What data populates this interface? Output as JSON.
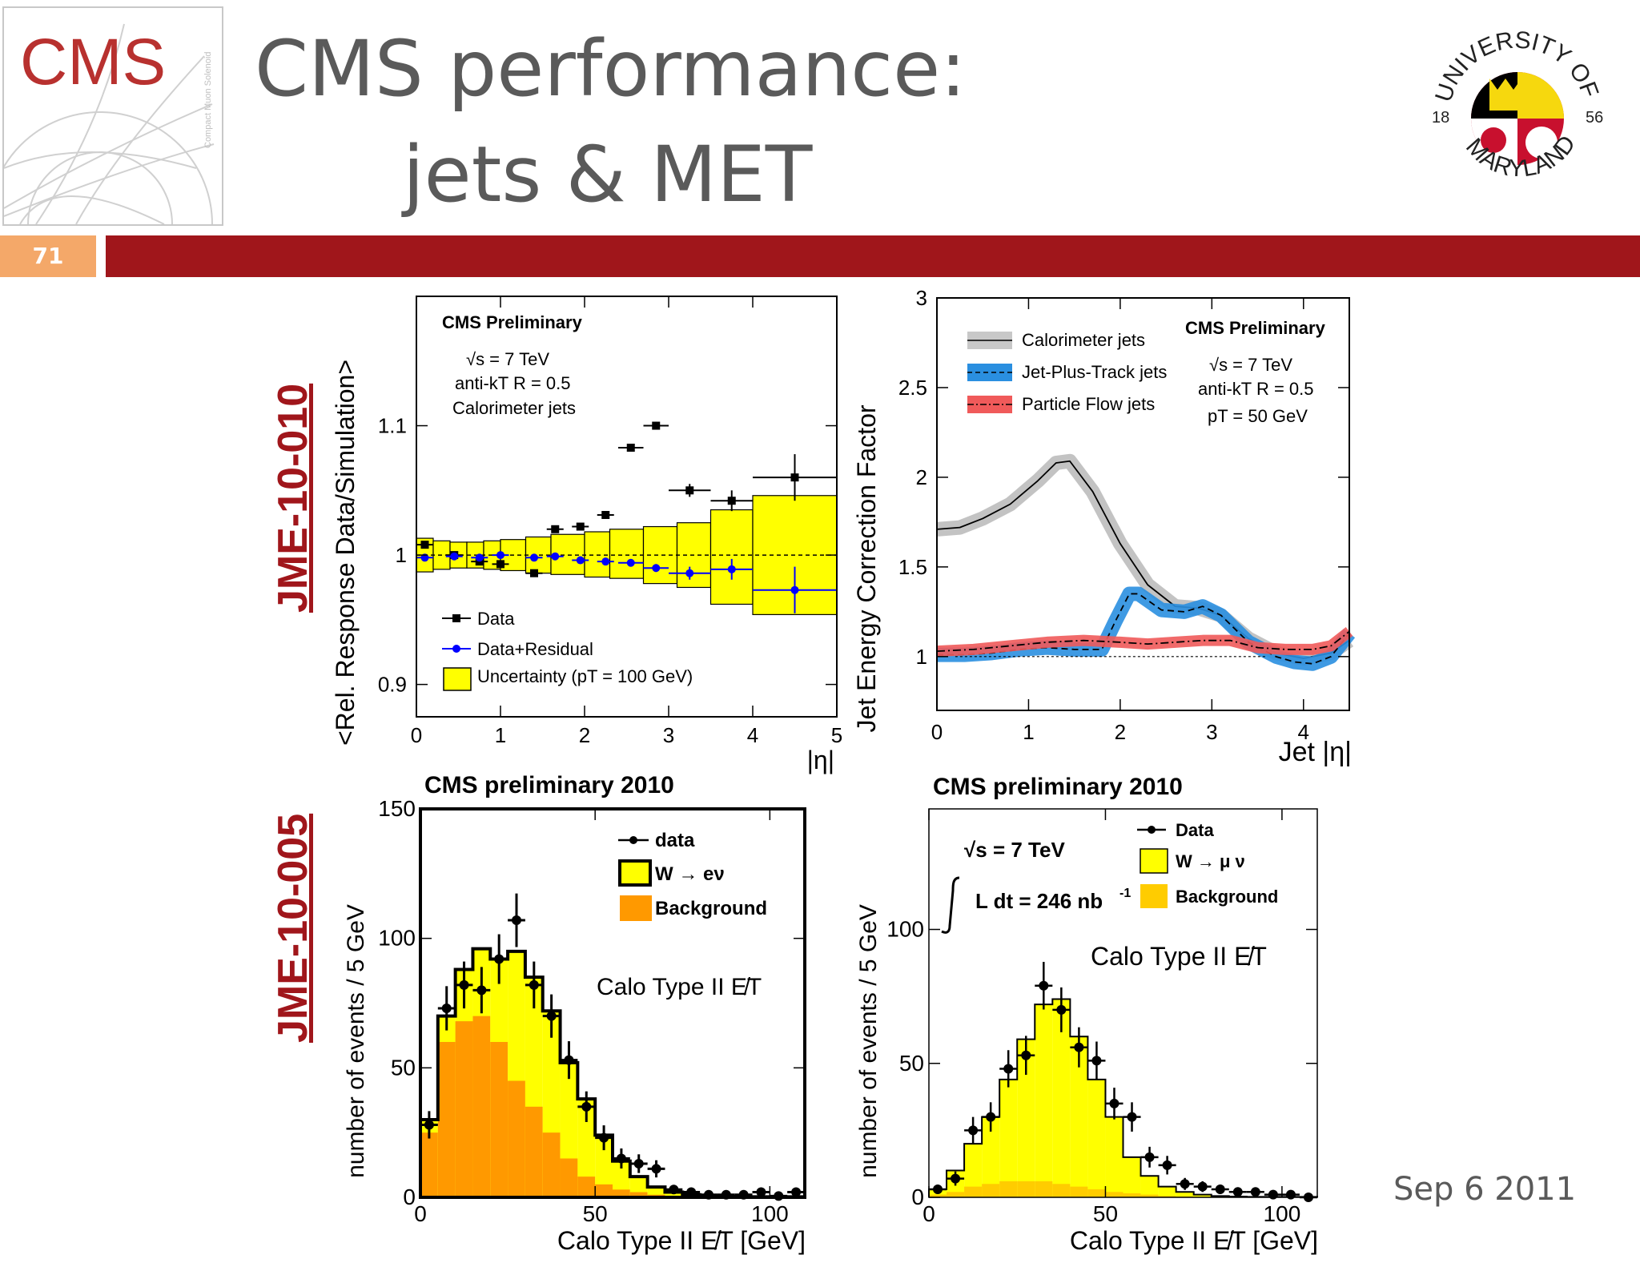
{
  "slide": {
    "title_line1": "CMS performance:",
    "title_line2": "jets & MET",
    "page_number": "71",
    "date": "Sep 6 2011",
    "ref_top": "JME-10-010",
    "ref_bottom": "JME-10-005",
    "cms_logo_text": "CMS",
    "cms_logo_side_text": "Compact Muon Solenoid",
    "umd_seal": {
      "top": "UNIVERSITY OF",
      "bottom": "MARYLAND",
      "year_left": "18",
      "year_right": "56"
    },
    "colors": {
      "accent_red": "#a0161b",
      "badge_orange": "#f4a869",
      "title_gray": "#5a5a5a"
    }
  },
  "chart_data": [
    {
      "id": "rel-response",
      "type": "scatter",
      "ylabel": "<Rel. Response Data/Simulation>",
      "xlabel": "|η|",
      "xlim": [
        0,
        5
      ],
      "ylim": [
        0.875,
        1.2
      ],
      "xticks": [
        "0",
        "1",
        "2",
        "3",
        "4",
        "5"
      ],
      "yticks": [
        {
          "v": 0.9,
          "t": "0.9"
        },
        {
          "v": 1.0,
          "t": "1"
        },
        {
          "v": 1.1,
          "t": "1.1"
        }
      ],
      "annotations": [
        "CMS Preliminary",
        "√s = 7 TeV",
        "anti-kT R = 0.5",
        "Calorimeter jets"
      ],
      "legend": [
        "Data",
        "Data+Residual",
        "Uncertainty (pT = 100 GeV)"
      ],
      "reference_line": 1.0,
      "uncertainty_band": [
        {
          "x0": 0.0,
          "x1": 0.2,
          "lo": 0.987,
          "hi": 1.013
        },
        {
          "x0": 0.2,
          "x1": 0.4,
          "lo": 0.989,
          "hi": 1.011
        },
        {
          "x0": 0.4,
          "x1": 0.6,
          "lo": 0.99,
          "hi": 1.01
        },
        {
          "x0": 0.6,
          "x1": 0.8,
          "lo": 0.99,
          "hi": 1.01
        },
        {
          "x0": 0.8,
          "x1": 1.0,
          "lo": 0.989,
          "hi": 1.011
        },
        {
          "x0": 1.0,
          "x1": 1.3,
          "lo": 0.988,
          "hi": 1.012
        },
        {
          "x0": 1.3,
          "x1": 1.6,
          "lo": 0.986,
          "hi": 1.014
        },
        {
          "x0": 1.6,
          "x1": 2.0,
          "lo": 0.985,
          "hi": 1.016
        },
        {
          "x0": 2.0,
          "x1": 2.3,
          "lo": 0.983,
          "hi": 1.018
        },
        {
          "x0": 2.3,
          "x1": 2.7,
          "lo": 0.982,
          "hi": 1.02
        },
        {
          "x0": 2.7,
          "x1": 3.1,
          "lo": 0.978,
          "hi": 1.022
        },
        {
          "x0": 3.1,
          "x1": 3.5,
          "lo": 0.975,
          "hi": 1.025
        },
        {
          "x0": 3.5,
          "x1": 4.0,
          "lo": 0.962,
          "hi": 1.035
        },
        {
          "x0": 4.0,
          "x1": 5.0,
          "lo": 0.954,
          "hi": 1.046
        }
      ],
      "series": [
        {
          "name": "Data",
          "points": [
            {
              "x": 0.1,
              "y": 1.008,
              "xe": 0.1,
              "ye": 0.002
            },
            {
              "x": 0.45,
              "y": 1.0,
              "xe": 0.1,
              "ye": 0.002
            },
            {
              "x": 0.75,
              "y": 0.995,
              "xe": 0.1,
              "ye": 0.002
            },
            {
              "x": 1.0,
              "y": 0.993,
              "xe": 0.1,
              "ye": 0.002
            },
            {
              "x": 1.4,
              "y": 0.986,
              "xe": 0.1,
              "ye": 0.002
            },
            {
              "x": 1.65,
              "y": 1.02,
              "xe": 0.1,
              "ye": 0.002
            },
            {
              "x": 1.95,
              "y": 1.022,
              "xe": 0.1,
              "ye": 0.002
            },
            {
              "x": 2.25,
              "y": 1.031,
              "xe": 0.1,
              "ye": 0.002
            },
            {
              "x": 2.55,
              "y": 1.083,
              "xe": 0.15,
              "ye": 0.002
            },
            {
              "x": 2.85,
              "y": 1.1,
              "xe": 0.15,
              "ye": 0.003
            },
            {
              "x": 3.25,
              "y": 1.05,
              "xe": 0.25,
              "ye": 0.005
            },
            {
              "x": 3.75,
              "y": 1.042,
              "xe": 0.25,
              "ye": 0.008
            },
            {
              "x": 4.5,
              "y": 1.06,
              "xe": 0.5,
              "ye": 0.018
            }
          ]
        },
        {
          "name": "Data+Residual",
          "points": [
            {
              "x": 0.1,
              "y": 0.998,
              "xe": 0.1,
              "ye": 0.002
            },
            {
              "x": 0.45,
              "y": 0.999,
              "xe": 0.1,
              "ye": 0.002
            },
            {
              "x": 0.75,
              "y": 0.998,
              "xe": 0.1,
              "ye": 0.002
            },
            {
              "x": 1.0,
              "y": 1.0,
              "xe": 0.1,
              "ye": 0.002
            },
            {
              "x": 1.4,
              "y": 0.998,
              "xe": 0.1,
              "ye": 0.002
            },
            {
              "x": 1.65,
              "y": 0.999,
              "xe": 0.1,
              "ye": 0.002
            },
            {
              "x": 1.95,
              "y": 0.996,
              "xe": 0.1,
              "ye": 0.002
            },
            {
              "x": 2.25,
              "y": 0.995,
              "xe": 0.1,
              "ye": 0.002
            },
            {
              "x": 2.55,
              "y": 0.994,
              "xe": 0.15,
              "ye": 0.002
            },
            {
              "x": 2.85,
              "y": 0.99,
              "xe": 0.15,
              "ye": 0.003
            },
            {
              "x": 3.25,
              "y": 0.986,
              "xe": 0.25,
              "ye": 0.005
            },
            {
              "x": 3.75,
              "y": 0.989,
              "xe": 0.25,
              "ye": 0.008
            },
            {
              "x": 4.5,
              "y": 0.973,
              "xe": 0.5,
              "ye": 0.018
            }
          ]
        }
      ]
    },
    {
      "id": "jec-factor",
      "type": "line",
      "ylabel": "Jet Energy Correction Factor",
      "xlabel": "Jet |η|",
      "xlim": [
        0,
        4.5
      ],
      "ylim": [
        0.7,
        3
      ],
      "xticks": [
        "0",
        "1",
        "2",
        "3",
        "4"
      ],
      "yticks": [
        {
          "v": 1,
          "t": "1"
        },
        {
          "v": 1.5,
          "t": "1.5"
        },
        {
          "v": 2,
          "t": "2"
        },
        {
          "v": 2.5,
          "t": "2.5"
        },
        {
          "v": 3,
          "t": "3"
        }
      ],
      "annotations": [
        "CMS Preliminary",
        "√s = 7 TeV",
        "anti-kT R = 0.5",
        "pT = 50 GeV"
      ],
      "legend": [
        "Calorimeter jets",
        "Jet-Plus-Track jets",
        "Particle Flow jets"
      ],
      "reference_line": 1.0,
      "series": [
        {
          "name": "Calorimeter jets",
          "color": "#bdbdbd",
          "x": [
            0,
            0.25,
            0.5,
            0.8,
            1.1,
            1.3,
            1.45,
            1.7,
            2.0,
            2.3,
            2.6,
            2.85,
            3.1,
            3.4,
            3.7,
            4.0,
            4.3,
            4.5
          ],
          "y": [
            1.71,
            1.72,
            1.77,
            1.85,
            1.98,
            2.08,
            2.09,
            1.92,
            1.63,
            1.4,
            1.28,
            1.27,
            1.23,
            1.1,
            1.02,
            0.99,
            1.02,
            1.09
          ]
        },
        {
          "name": "Jet-Plus-Track jets",
          "color": "#2a8fe0",
          "x": [
            0,
            0.3,
            0.6,
            0.9,
            1.2,
            1.5,
            1.8,
            1.95,
            2.1,
            2.2,
            2.45,
            2.7,
            2.9,
            3.1,
            3.4,
            3.7,
            3.9,
            4.1,
            4.3,
            4.5
          ],
          "y": [
            1.01,
            1.01,
            1.02,
            1.04,
            1.05,
            1.04,
            1.04,
            1.2,
            1.35,
            1.35,
            1.26,
            1.25,
            1.28,
            1.23,
            1.08,
            1.0,
            0.97,
            0.96,
            1.0,
            1.13
          ]
        },
        {
          "name": "Particle Flow jets",
          "color": "#f05a5a",
          "x": [
            0,
            0.4,
            0.8,
            1.2,
            1.6,
            2.0,
            2.3,
            2.6,
            2.9,
            3.2,
            3.5,
            3.8,
            4.1,
            4.3,
            4.5
          ],
          "y": [
            1.03,
            1.04,
            1.06,
            1.08,
            1.09,
            1.08,
            1.07,
            1.08,
            1.09,
            1.09,
            1.05,
            1.04,
            1.04,
            1.06,
            1.14
          ]
        }
      ]
    },
    {
      "id": "met-wenu",
      "type": "bar",
      "title": "CMS preliminary 2010",
      "ylabel": "number of events / 5 GeV",
      "xlabel": "Calo Type II E̸T [GeV]",
      "annotation": "Calo Type II E̸T",
      "xlim": [
        0,
        110
      ],
      "ylim": [
        0,
        150
      ],
      "xticks": [
        {
          "v": 0,
          "t": "0"
        },
        {
          "v": 50,
          "t": "50"
        },
        {
          "v": 100,
          "t": "100"
        }
      ],
      "yticks": [
        {
          "v": 0,
          "t": "0"
        },
        {
          "v": 50,
          "t": "50"
        },
        {
          "v": 100,
          "t": "100"
        },
        {
          "v": 150,
          "t": "150"
        }
      ],
      "legend": [
        "data",
        "W → eν",
        "Background"
      ],
      "bin_width": 5,
      "bin_starts": [
        0,
        5,
        10,
        15,
        20,
        25,
        30,
        35,
        40,
        45,
        50,
        55,
        60,
        65,
        70,
        75,
        80,
        85,
        90,
        95,
        100,
        105
      ],
      "series": [
        {
          "name": "Background",
          "color": "#ff9900",
          "values": [
            25,
            60,
            68,
            70,
            60,
            45,
            35,
            25,
            15,
            8,
            5,
            3,
            2,
            1,
            0.5,
            0.3,
            0.2,
            0.1,
            0.1,
            0.1,
            0.1,
            0.1
          ]
        },
        {
          "name": "W → eν",
          "color": "#ffff00",
          "values": [
            30,
            70,
            88,
            96,
            92,
            95,
            85,
            72,
            52,
            38,
            24,
            14,
            8,
            4,
            2,
            1,
            0.5,
            0.3,
            0.2,
            0.2,
            0.2,
            0.2
          ]
        },
        {
          "name": "data",
          "points": [
            {
              "x": 2.5,
              "y": 28
            },
            {
              "x": 7.5,
              "y": 73
            },
            {
              "x": 12.5,
              "y": 82
            },
            {
              "x": 17.5,
              "y": 80
            },
            {
              "x": 22.5,
              "y": 92
            },
            {
              "x": 27.5,
              "y": 107
            },
            {
              "x": 32.5,
              "y": 82
            },
            {
              "x": 37.5,
              "y": 70
            },
            {
              "x": 42.5,
              "y": 53
            },
            {
              "x": 47.5,
              "y": 35
            },
            {
              "x": 52.5,
              "y": 23
            },
            {
              "x": 57.5,
              "y": 15
            },
            {
              "x": 62.5,
              "y": 13
            },
            {
              "x": 67.5,
              "y": 11
            },
            {
              "x": 72.5,
              "y": 3
            },
            {
              "x": 77.5,
              "y": 2
            },
            {
              "x": 82.5,
              "y": 1
            },
            {
              "x": 87.5,
              "y": 1
            },
            {
              "x": 92.5,
              "y": 1
            },
            {
              "x": 97.5,
              "y": 2
            },
            {
              "x": 102.5,
              "y": 0.5
            },
            {
              "x": 107.5,
              "y": 2
            }
          ]
        }
      ]
    },
    {
      "id": "met-wmunu",
      "type": "bar",
      "title": "CMS preliminary 2010",
      "ylabel": "number of events / 5 GeV",
      "xlabel": "Calo Type II E̸T [GeV]",
      "annotation": "Calo Type II E̸T",
      "energy_text": "√s = 7 TeV",
      "lumi_text": "L dt = 246 nb",
      "lumi_exponent": "-1",
      "xlim": [
        0,
        110
      ],
      "ylim": [
        0,
        145
      ],
      "xticks": [
        {
          "v": 0,
          "t": "0"
        },
        {
          "v": 50,
          "t": "50"
        },
        {
          "v": 100,
          "t": "100"
        }
      ],
      "yticks": [
        {
          "v": 0,
          "t": "0"
        },
        {
          "v": 50,
          "t": "50"
        },
        {
          "v": 100,
          "t": "100"
        }
      ],
      "legend": [
        "Data",
        "W → μ ν",
        "Background"
      ],
      "bin_width": 5,
      "bin_starts": [
        0,
        5,
        10,
        15,
        20,
        25,
        30,
        35,
        40,
        45,
        50,
        55,
        60,
        65,
        70,
        75,
        80,
        85,
        90,
        95,
        100,
        105
      ],
      "series": [
        {
          "name": "Background",
          "color": "#ffcc00",
          "values": [
            1,
            2,
            4,
            5,
            6,
            6,
            6,
            5,
            4,
            3,
            2,
            1.5,
            1,
            0.5,
            0.3,
            0.2,
            0.1,
            0.1,
            0.1,
            0.1,
            0.1,
            0.1
          ]
        },
        {
          "name": "W → μ ν",
          "color": "#ffff00",
          "values": [
            3,
            10,
            20,
            30,
            44,
            59,
            72,
            74,
            60,
            44,
            30,
            15,
            8,
            4,
            2,
            1,
            0.5,
            0.3,
            0.2,
            0.2,
            0.2,
            0.2
          ]
        },
        {
          "name": "Data",
          "points": [
            {
              "x": 2.5,
              "y": 3
            },
            {
              "x": 7.5,
              "y": 7
            },
            {
              "x": 12.5,
              "y": 25
            },
            {
              "x": 17.5,
              "y": 30
            },
            {
              "x": 22.5,
              "y": 48
            },
            {
              "x": 27.5,
              "y": 53
            },
            {
              "x": 32.5,
              "y": 79
            },
            {
              "x": 37.5,
              "y": 70
            },
            {
              "x": 42.5,
              "y": 56
            },
            {
              "x": 47.5,
              "y": 51
            },
            {
              "x": 52.5,
              "y": 35
            },
            {
              "x": 57.5,
              "y": 30
            },
            {
              "x": 62.5,
              "y": 15
            },
            {
              "x": 67.5,
              "y": 12
            },
            {
              "x": 72.5,
              "y": 5
            },
            {
              "x": 77.5,
              "y": 4
            },
            {
              "x": 82.5,
              "y": 3
            },
            {
              "x": 87.5,
              "y": 2
            },
            {
              "x": 92.5,
              "y": 2
            },
            {
              "x": 97.5,
              "y": 1
            },
            {
              "x": 102.5,
              "y": 1
            },
            {
              "x": 107.5,
              "y": 0
            }
          ]
        }
      ]
    }
  ]
}
